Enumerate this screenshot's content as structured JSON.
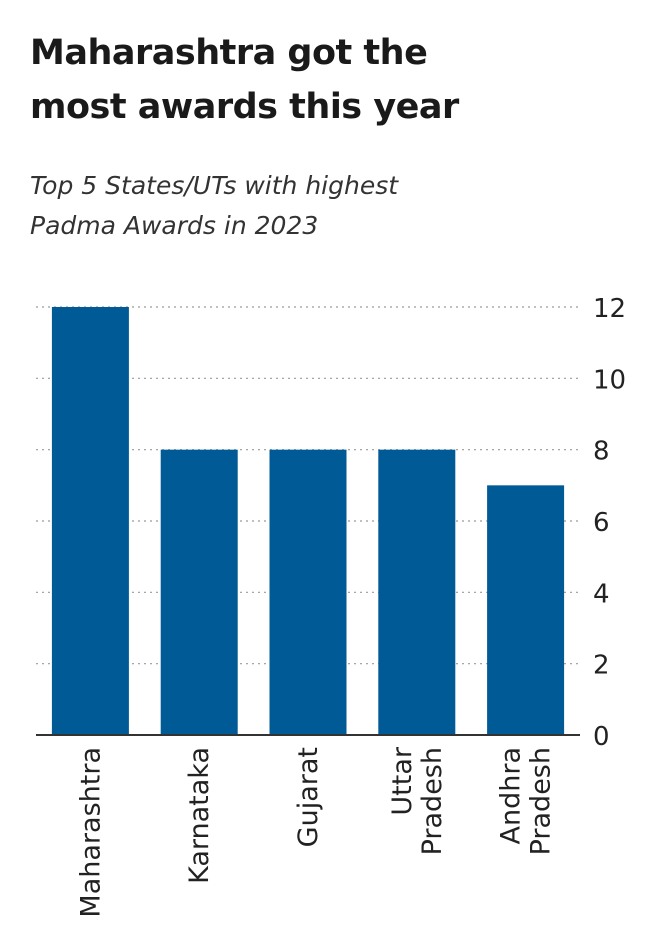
{
  "title_line1": "Maharashtra got the",
  "title_line2": "most awards this year",
  "subtitle_line1": "Top 5 States/UTs with highest",
  "subtitle_line2": "Padma Awards in 2023",
  "colors": {
    "bar": "#005a96",
    "grid": "#9a9a9a",
    "axis": "#333333",
    "text": "#222222"
  },
  "chart_data": {
    "type": "bar",
    "categories": [
      [
        "Maharashtra"
      ],
      [
        "Karnataka"
      ],
      [
        "Gujarat"
      ],
      [
        "Uttar",
        "Pradesh"
      ],
      [
        "Andhra",
        "Pradesh"
      ]
    ],
    "values": [
      12,
      8,
      8,
      8,
      7
    ],
    "ylim": [
      0,
      12
    ],
    "yticks": [
      "0",
      "2",
      "4",
      "6",
      "8",
      "10",
      "12"
    ],
    "y_axis_position": "right",
    "grid": "dotted horizontal"
  }
}
